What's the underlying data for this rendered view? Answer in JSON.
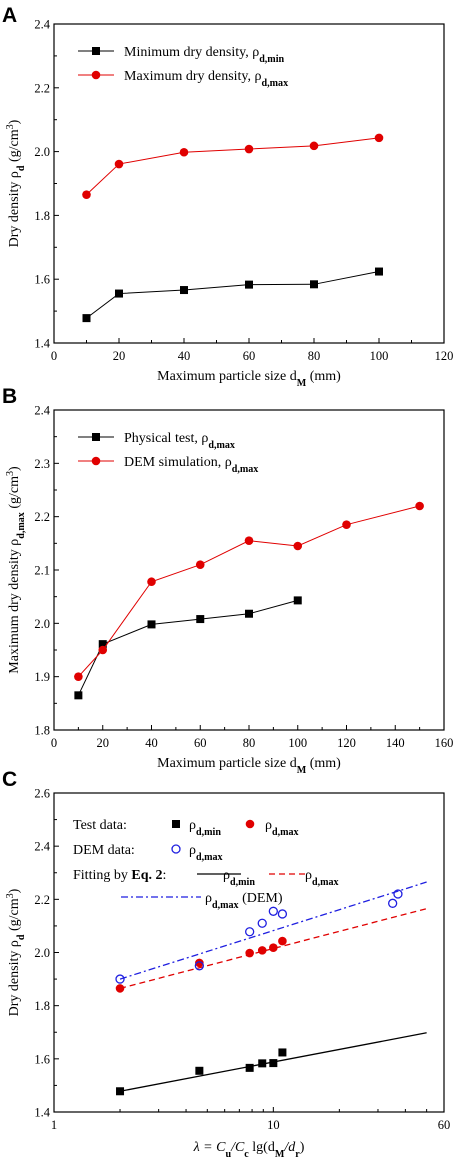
{
  "chart_data": [
    {
      "panel": "A",
      "type": "line",
      "xlabel": "Maximum particle size d",
      "xlabel_sub": "M",
      "xlabel_unit": " (mm)",
      "ylabel": "Dry density ρ",
      "ylabel_sub": "d",
      "ylabel_unit": " (g/cm",
      "ylabel_sup": "3",
      "ylabel_close": ")",
      "xlim": [
        0,
        120
      ],
      "ylim": [
        1.4,
        2.4
      ],
      "xticks": [
        0,
        20,
        40,
        60,
        80,
        100,
        120
      ],
      "yticks": [
        "1.4",
        "1.6",
        "1.8",
        "2.0",
        "2.2",
        "2.4"
      ],
      "legend_position": "top-left",
      "series": [
        {
          "name": "Minimum dry density, ρ",
          "name_sub": "d,min",
          "color": "#000000",
          "marker": "square",
          "x": [
            10,
            20,
            40,
            60,
            80,
            100
          ],
          "y": [
            1.478,
            1.555,
            1.566,
            1.583,
            1.584,
            1.624
          ]
        },
        {
          "name": "Maximum dry density, ρ",
          "name_sub": "d,max",
          "color": "#e00000",
          "marker": "circle",
          "x": [
            10,
            20,
            40,
            60,
            80,
            100
          ],
          "y": [
            1.865,
            1.961,
            1.998,
            2.008,
            2.018,
            2.043
          ]
        }
      ]
    },
    {
      "panel": "B",
      "type": "line",
      "xlabel": "Maximum particle size d",
      "xlabel_sub": "M",
      "xlabel_unit": " (mm)",
      "ylabel": "Maximum dry density ρ",
      "ylabel_sub": "d,max",
      "ylabel_unit": " (g/cm",
      "ylabel_sup": "3",
      "ylabel_close": ")",
      "xlim": [
        0,
        160
      ],
      "ylim": [
        1.8,
        2.4
      ],
      "xticks": [
        0,
        20,
        40,
        60,
        80,
        100,
        120,
        140,
        160
      ],
      "yticks": [
        "1.8",
        "1.9",
        "2.0",
        "2.1",
        "2.2",
        "2.3",
        "2.4"
      ],
      "legend_position": "top-left",
      "series": [
        {
          "name": "Physical test, ρ",
          "name_sub": "d,max",
          "color": "#000000",
          "marker": "square",
          "x": [
            10,
            20,
            40,
            60,
            80,
            100
          ],
          "y": [
            1.865,
            1.961,
            1.998,
            2.008,
            2.018,
            2.043
          ]
        },
        {
          "name": "DEM simulation, ρ",
          "name_sub": "d,max",
          "color": "#e00000",
          "marker": "circle",
          "x": [
            10,
            20,
            40,
            60,
            80,
            100,
            120,
            150
          ],
          "y": [
            1.9,
            1.95,
            2.078,
            2.11,
            2.155,
            2.145,
            2.185,
            2.22
          ]
        }
      ]
    },
    {
      "panel": "C",
      "type": "scatter",
      "xscale": "log",
      "xlabel": "λ = C",
      "xlabel_s1": "u",
      "xlabel_mid": "/C",
      "xlabel_s2": "c",
      "xlabel_lg": " lg(d",
      "xlabel_s3": "M",
      "xlabel_slash": "/d",
      "xlabel_s4": "r",
      "xlabel_end": ")",
      "ylabel": "Dry density ρ",
      "ylabel_sub": "d",
      "ylabel_unit": " (g/cm",
      "ylabel_sup": "3",
      "ylabel_close": ")",
      "xlim": [
        1,
        60
      ],
      "ylim": [
        1.4,
        2.6
      ],
      "xticks": [
        "1",
        "10",
        "60"
      ],
      "yticks": [
        "1.4",
        "1.6",
        "1.8",
        "2.0",
        "2.2",
        "2.4",
        "2.6"
      ],
      "legend_position": "top-left",
      "legend": {
        "test_label": "Test data:",
        "dem_label": "DEM data:",
        "fit_label": "Fitting by ",
        "fit_eq": "Eq. 2",
        "fit_colon": ":",
        "rho": "ρ",
        "sub_min": "d,min",
        "sub_max": "d,max",
        "dem_suffix": " (DEM)"
      },
      "series": [
        {
          "key": "test_min",
          "color": "#000000",
          "marker": "square",
          "x": [
            2.0,
            4.6,
            7.8,
            8.9,
            10.0,
            11.0
          ],
          "y": [
            1.478,
            1.555,
            1.566,
            1.583,
            1.584,
            1.624
          ]
        },
        {
          "key": "test_max",
          "color": "#e00000",
          "marker": "circle",
          "x": [
            2.0,
            4.6,
            7.8,
            8.9,
            10.0,
            11.0
          ],
          "y": [
            1.865,
            1.961,
            1.998,
            2.008,
            2.018,
            2.043
          ]
        },
        {
          "key": "dem_max",
          "color": "#1f1fe0",
          "marker": "open-circle",
          "x": [
            2.0,
            4.6,
            7.8,
            8.9,
            10.0,
            11.0,
            35.0,
            37.0
          ],
          "y": [
            1.9,
            1.95,
            2.078,
            2.11,
            2.155,
            2.145,
            2.185,
            2.22
          ]
        }
      ],
      "fits": [
        {
          "key": "fit_min",
          "color": "#000000",
          "dash": "solid",
          "x": [
            2.0,
            50.0
          ],
          "y": [
            1.478,
            1.698
          ]
        },
        {
          "key": "fit_max",
          "color": "#e00000",
          "dash": "dashed",
          "x": [
            2.0,
            50.0
          ],
          "y": [
            1.865,
            2.165
          ]
        },
        {
          "key": "fit_dem",
          "color": "#1f1fe0",
          "dash": "dashdot",
          "x": [
            2.0,
            50.0
          ],
          "y": [
            1.9,
            2.265
          ]
        }
      ]
    }
  ]
}
